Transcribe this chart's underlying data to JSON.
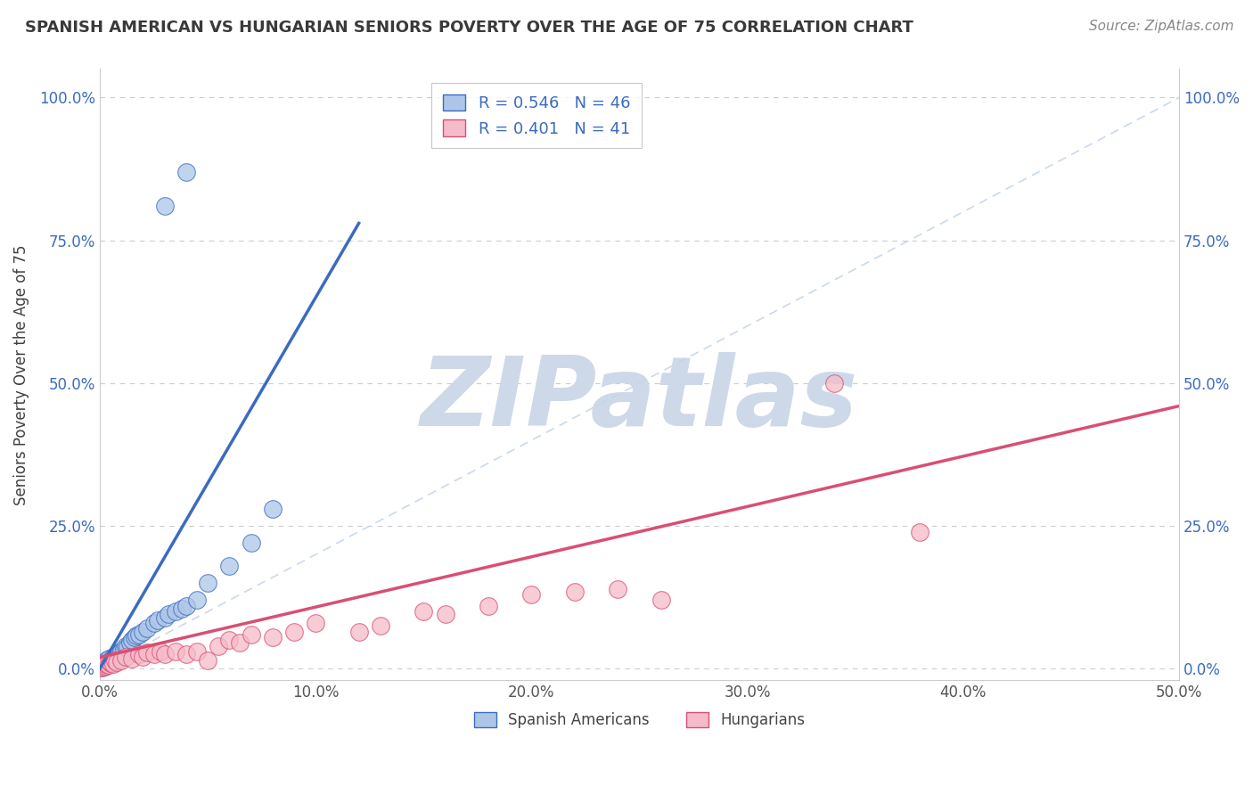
{
  "title": "SPANISH AMERICAN VS HUNGARIAN SENIORS POVERTY OVER THE AGE OF 75 CORRELATION CHART",
  "source_text": "Source: ZipAtlas.com",
  "ylabel": "Seniors Poverty Over the Age of 75",
  "xlim": [
    0.0,
    0.5
  ],
  "ylim": [
    -0.02,
    1.05
  ],
  "xticks": [
    0.0,
    0.1,
    0.2,
    0.3,
    0.4,
    0.5
  ],
  "xticklabels": [
    "0.0%",
    "10.0%",
    "20.0%",
    "30.0%",
    "40.0%",
    "50.0%"
  ],
  "yticks": [
    0.0,
    0.25,
    0.5,
    0.75,
    1.0
  ],
  "yticklabels": [
    "0.0%",
    "25.0%",
    "50.0%",
    "75.0%",
    "100.0%"
  ],
  "spanish_R": 0.546,
  "spanish_N": 46,
  "hungarian_R": 0.401,
  "hungarian_N": 41,
  "spanish_color": "#adc6e8",
  "hungarian_color": "#f5bbc8",
  "spanish_line_color": "#3b6bbf",
  "hungarian_line_color": "#d94f72",
  "diagonal_color": "#c5d5ea",
  "legend_spanish_label": "Spanish Americans",
  "legend_hungarian_label": "Hungarians",
  "title_color": "#3a3a3a",
  "source_color": "#888888",
  "watermark_text": "ZIPatlas",
  "watermark_color": "#cdd9e8",
  "spanish_x": [
    0.001,
    0.001,
    0.002,
    0.002,
    0.003,
    0.003,
    0.003,
    0.004,
    0.004,
    0.004,
    0.005,
    0.005,
    0.006,
    0.006,
    0.007,
    0.007,
    0.008,
    0.008,
    0.009,
    0.009,
    0.01,
    0.01,
    0.011,
    0.012,
    0.013,
    0.014,
    0.015,
    0.016,
    0.017,
    0.018,
    0.02,
    0.022,
    0.025,
    0.027,
    0.03,
    0.032,
    0.035,
    0.038,
    0.04,
    0.045,
    0.05,
    0.06,
    0.07,
    0.08,
    0.03,
    0.04
  ],
  "spanish_y": [
    0.002,
    0.005,
    0.003,
    0.008,
    0.006,
    0.01,
    0.015,
    0.008,
    0.012,
    0.018,
    0.01,
    0.015,
    0.012,
    0.02,
    0.015,
    0.022,
    0.018,
    0.025,
    0.02,
    0.028,
    0.025,
    0.03,
    0.035,
    0.04,
    0.038,
    0.045,
    0.05,
    0.055,
    0.058,
    0.06,
    0.065,
    0.07,
    0.08,
    0.085,
    0.09,
    0.095,
    0.1,
    0.105,
    0.11,
    0.12,
    0.15,
    0.18,
    0.22,
    0.28,
    0.81,
    0.87
  ],
  "hungarian_x": [
    0.001,
    0.002,
    0.003,
    0.003,
    0.004,
    0.005,
    0.005,
    0.006,
    0.007,
    0.008,
    0.01,
    0.012,
    0.015,
    0.018,
    0.02,
    0.022,
    0.025,
    0.028,
    0.03,
    0.035,
    0.04,
    0.045,
    0.05,
    0.055,
    0.06,
    0.065,
    0.07,
    0.08,
    0.09,
    0.1,
    0.12,
    0.13,
    0.15,
    0.16,
    0.18,
    0.2,
    0.22,
    0.24,
    0.26,
    0.34,
    0.38
  ],
  "hungarian_y": [
    0.002,
    0.004,
    0.005,
    0.008,
    0.006,
    0.01,
    0.012,
    0.008,
    0.015,
    0.012,
    0.015,
    0.02,
    0.018,
    0.025,
    0.02,
    0.028,
    0.025,
    0.03,
    0.025,
    0.03,
    0.025,
    0.03,
    0.015,
    0.04,
    0.05,
    0.045,
    0.06,
    0.055,
    0.065,
    0.08,
    0.065,
    0.075,
    0.1,
    0.095,
    0.11,
    0.13,
    0.135,
    0.14,
    0.12,
    0.5,
    0.24
  ],
  "sp_trend_x0": 0.0,
  "sp_trend_y0": 0.0,
  "sp_trend_x1": 0.12,
  "sp_trend_y1": 0.78,
  "hu_trend_x0": 0.0,
  "hu_trend_y0": 0.02,
  "hu_trend_x1": 0.5,
  "hu_trend_y1": 0.46
}
